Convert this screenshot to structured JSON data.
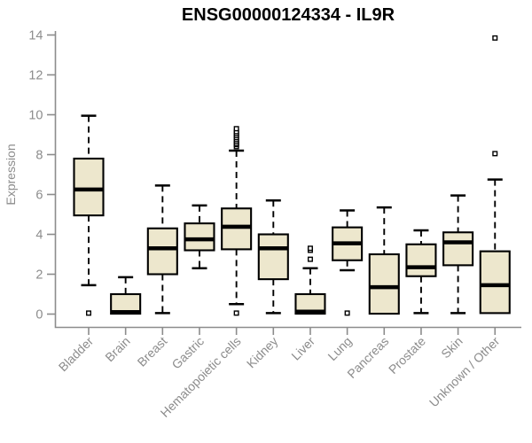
{
  "chart_data": {
    "type": "boxplot",
    "title": "ENSG00000124334 - IL9R",
    "ylabel": "Expression",
    "xlabel": "",
    "ylim": [
      0,
      14
    ],
    "yticks": [
      0,
      2,
      4,
      6,
      8,
      10,
      12,
      14
    ],
    "grid": false,
    "legend": "none",
    "categories": [
      "Bladder",
      "Brain",
      "Breast",
      "Gastric",
      "Hematopoietic cells",
      "Kidney",
      "Liver",
      "Lung",
      "Pancreas",
      "Prostate",
      "Skin",
      "Unknown / Other"
    ],
    "series": [
      {
        "label": "Bladder",
        "whisker_low": 1.45,
        "q1": 4.95,
        "median": 6.25,
        "q3": 7.8,
        "whisker_high": 9.95,
        "outliers": [
          0.05
        ]
      },
      {
        "label": "Brain",
        "whisker_low": 0.02,
        "q1": 0.02,
        "median": 0.1,
        "q3": 1.0,
        "whisker_high": 1.85,
        "outliers": []
      },
      {
        "label": "Breast",
        "whisker_low": 0.05,
        "q1": 2.0,
        "median": 3.3,
        "q3": 4.3,
        "whisker_high": 6.45,
        "outliers": []
      },
      {
        "label": "Gastric",
        "whisker_low": 2.3,
        "q1": 3.2,
        "median": 3.75,
        "q3": 4.55,
        "whisker_high": 5.45,
        "outliers": []
      },
      {
        "label": "Hematopoietic cells",
        "whisker_low": 0.5,
        "q1": 3.25,
        "median": 4.38,
        "q3": 5.3,
        "whisker_high": 8.2,
        "outliers": [
          0.05,
          8.4,
          8.5,
          8.55,
          8.65,
          8.75,
          8.85,
          8.95,
          9.05,
          9.15,
          9.3
        ]
      },
      {
        "label": "Kidney",
        "whisker_low": 0.05,
        "q1": 1.75,
        "median": 3.3,
        "q3": 4.0,
        "whisker_high": 5.7,
        "outliers": []
      },
      {
        "label": "Liver",
        "whisker_low": 0.02,
        "q1": 0.02,
        "median": 0.12,
        "q3": 1.0,
        "whisker_high": 2.3,
        "outliers": [
          2.75,
          3.2,
          3.3
        ]
      },
      {
        "label": "Lung",
        "whisker_low": 2.2,
        "q1": 2.7,
        "median": 3.55,
        "q3": 4.35,
        "whisker_high": 5.2,
        "outliers": [
          0.05
        ]
      },
      {
        "label": "Pancreas",
        "whisker_low": 0.02,
        "q1": 0.02,
        "median": 1.35,
        "q3": 3.0,
        "whisker_high": 5.35,
        "outliers": []
      },
      {
        "label": "Prostate",
        "whisker_low": 0.05,
        "q1": 1.9,
        "median": 2.35,
        "q3": 3.5,
        "whisker_high": 4.2,
        "outliers": []
      },
      {
        "label": "Skin",
        "whisker_low": 0.05,
        "q1": 2.45,
        "median": 3.6,
        "q3": 4.1,
        "whisker_high": 5.95,
        "outliers": []
      },
      {
        "label": "Unknown / Other",
        "whisker_low": 0.05,
        "q1": 0.05,
        "median": 1.45,
        "q3": 3.15,
        "whisker_high": 6.75,
        "outliers": [
          8.05,
          13.85
        ]
      }
    ]
  },
  "colors": {
    "box_fill": "#EDE7CD",
    "box_stroke": "#000000",
    "median": "#000000",
    "outlier_fill": "#FFFFFF",
    "axis": "#8C8C8C",
    "tick_label": "#8C8C8C",
    "title": "#000000",
    "background": "#FFFFFF"
  }
}
